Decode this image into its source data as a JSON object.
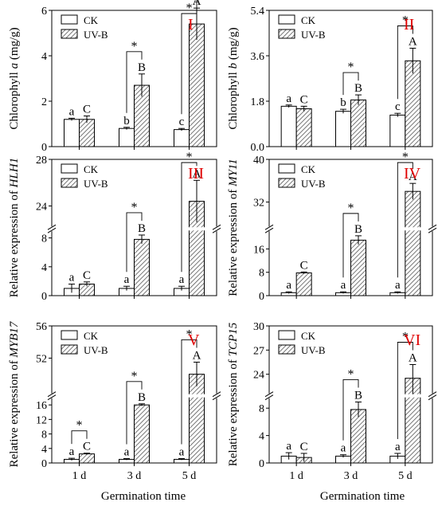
{
  "chart_data": [
    {
      "type": "bar",
      "panel_label": "I",
      "ylabel_parts": [
        "Chlorophyll ",
        "a",
        " (mg/g)"
      ],
      "ylabel_italic": [
        false,
        true,
        false
      ],
      "categories": [
        "1 d",
        "3 d",
        "5 d"
      ],
      "series": [
        {
          "name": "CK",
          "values": [
            1.2,
            0.8,
            0.75
          ],
          "errors": [
            0.05,
            0.05,
            0.05
          ]
        },
        {
          "name": "UV-B",
          "values": [
            1.2,
            2.7,
            5.4
          ],
          "errors": [
            0.15,
            0.5,
            0.7
          ]
        }
      ],
      "letters_ck": [
        "a",
        "b",
        "c"
      ],
      "letters_uv": [
        "C",
        "B",
        "A"
      ],
      "sig": [
        "",
        "*",
        "*"
      ],
      "ylim": [
        0,
        6
      ],
      "yticks": [
        0,
        2,
        4,
        6
      ],
      "ytick_labels": [
        "0",
        "2",
        "4",
        "6"
      ],
      "break": null,
      "legend_position": "top-left",
      "grid": false
    },
    {
      "type": "bar",
      "panel_label": "II",
      "ylabel_parts": [
        "Chlorophyll ",
        "b",
        " (mg/g)"
      ],
      "ylabel_italic": [
        false,
        true,
        false
      ],
      "categories": [
        "1 d",
        "3 d",
        "5 d"
      ],
      "series": [
        {
          "name": "CK",
          "values": [
            1.6,
            1.4,
            1.25
          ],
          "errors": [
            0.05,
            0.08,
            0.07
          ]
        },
        {
          "name": "UV-B",
          "values": [
            1.5,
            1.85,
            3.4
          ],
          "errors": [
            0.1,
            0.2,
            0.5
          ]
        }
      ],
      "letters_ck": [
        "a",
        "b",
        "c"
      ],
      "letters_uv": [
        "C",
        "B",
        "A"
      ],
      "sig": [
        "",
        "*",
        "*"
      ],
      "ylim": [
        0,
        5.4
      ],
      "yticks": [
        0,
        1.8,
        3.6,
        5.4
      ],
      "ytick_labels": [
        "0.0",
        "1.8",
        "3.6",
        "5.4"
      ],
      "break": null,
      "legend_position": "top-left",
      "grid": false
    },
    {
      "type": "bar",
      "panel_label": "III",
      "ylabel_parts": [
        "Relative expression of ",
        "HLH1"
      ],
      "ylabel_italic": [
        false,
        true
      ],
      "categories": [
        "1 d",
        "3 d",
        "5 d"
      ],
      "series": [
        {
          "name": "CK",
          "values": [
            1.0,
            1.0,
            1.0
          ],
          "errors": [
            0.6,
            0.3,
            0.3
          ]
        },
        {
          "name": "UV-B",
          "values": [
            1.6,
            7.8,
            24.4
          ],
          "errors": [
            0.3,
            0.6,
            1.8
          ]
        }
      ],
      "letters_ck": [
        "a",
        "a",
        "a"
      ],
      "letters_uv": [
        "C",
        "B",
        "A"
      ],
      "sig": [
        "",
        "*",
        "*"
      ],
      "ylim": [
        0,
        28
      ],
      "yticks": [
        0,
        4,
        8,
        24,
        28
      ],
      "ytick_labels": [
        "0",
        "4",
        "8",
        "24",
        "28"
      ],
      "break": {
        "low_max": 8.5,
        "high_min": 22.5,
        "high_max": 28
      },
      "legend_position": "top-left",
      "grid": false
    },
    {
      "type": "bar",
      "panel_label": "IV",
      "ylabel_parts": [
        "Relative expression of ",
        "MY11"
      ],
      "ylabel_italic": [
        false,
        true
      ],
      "categories": [
        "1 d",
        "3 d",
        "5 d"
      ],
      "series": [
        {
          "name": "CK",
          "values": [
            1.0,
            1.0,
            1.0
          ],
          "errors": [
            0.3,
            0.3,
            0.3
          ]
        },
        {
          "name": "UV-B",
          "values": [
            7.8,
            19.0,
            34.0
          ],
          "errors": [
            0.3,
            1.5,
            1.5
          ]
        }
      ],
      "letters_ck": [
        "a",
        "a",
        "a"
      ],
      "letters_uv": [
        "C",
        "B",
        "A"
      ],
      "sig": [
        "",
        "*",
        "*"
      ],
      "ylim": [
        0,
        40
      ],
      "yticks": [
        0,
        8,
        16,
        32,
        40
      ],
      "ytick_labels": [
        "0",
        "8",
        "16",
        "32",
        "40"
      ],
      "break": {
        "low_max": 21,
        "high_min": 28,
        "high_max": 40
      },
      "legend_position": "top-left",
      "grid": false
    },
    {
      "type": "bar",
      "panel_label": "V",
      "ylabel_parts": [
        "Relative expression of ",
        "MYB17"
      ],
      "ylabel_italic": [
        false,
        true
      ],
      "categories": [
        "1 d",
        "3 d",
        "5 d"
      ],
      "series": [
        {
          "name": "CK",
          "values": [
            1.0,
            1.0,
            1.0
          ],
          "errors": [
            0.3,
            0.2,
            0.2
          ]
        },
        {
          "name": "UV-B",
          "values": [
            2.5,
            16.0,
            50.0
          ],
          "errors": [
            0.2,
            0.3,
            1.5
          ]
        }
      ],
      "letters_ck": [
        "a",
        "a",
        "a"
      ],
      "letters_uv": [
        "C",
        "B",
        "A"
      ],
      "sig": [
        "*",
        "*",
        "*"
      ],
      "ylim": [
        0,
        56
      ],
      "yticks": [
        0,
        4,
        8,
        12,
        16,
        52,
        56
      ],
      "ytick_labels": [
        "0",
        "4",
        "8",
        "12",
        "16",
        "52",
        "56"
      ],
      "break": {
        "low_max": 17,
        "high_min": 48,
        "high_max": 56
      },
      "legend_position": "top-left",
      "grid": false
    },
    {
      "type": "bar",
      "panel_label": "VI",
      "ylabel_parts": [
        "Relative expression of ",
        "TCP15"
      ],
      "ylabel_italic": [
        false,
        true
      ],
      "categories": [
        "1 d",
        "3 d",
        "5 d"
      ],
      "series": [
        {
          "name": "CK",
          "values": [
            1.0,
            1.0,
            1.0
          ],
          "errors": [
            0.5,
            0.2,
            0.4
          ]
        },
        {
          "name": "UV-B",
          "values": [
            0.8,
            7.8,
            23.5
          ],
          "errors": [
            0.6,
            1.1,
            1.7
          ]
        }
      ],
      "letters_ck": [
        "a",
        "a",
        "a"
      ],
      "letters_uv": [
        "C",
        "B",
        "A"
      ],
      "sig": [
        "",
        "*",
        "*"
      ],
      "ylim": [
        0,
        30
      ],
      "yticks": [
        0,
        4,
        8,
        24,
        27,
        30
      ],
      "ytick_labels": [
        "0",
        "4",
        "8",
        "24",
        "27",
        "30"
      ],
      "break": {
        "low_max": 9,
        "high_min": 22,
        "high_max": 30
      },
      "legend_position": "top-left",
      "grid": false
    }
  ],
  "xlabel": "Germination time",
  "panel_label_color": "#e00000",
  "bar_colors": {
    "ck_fill": "#ffffff",
    "uv_hatch": "#555555"
  }
}
